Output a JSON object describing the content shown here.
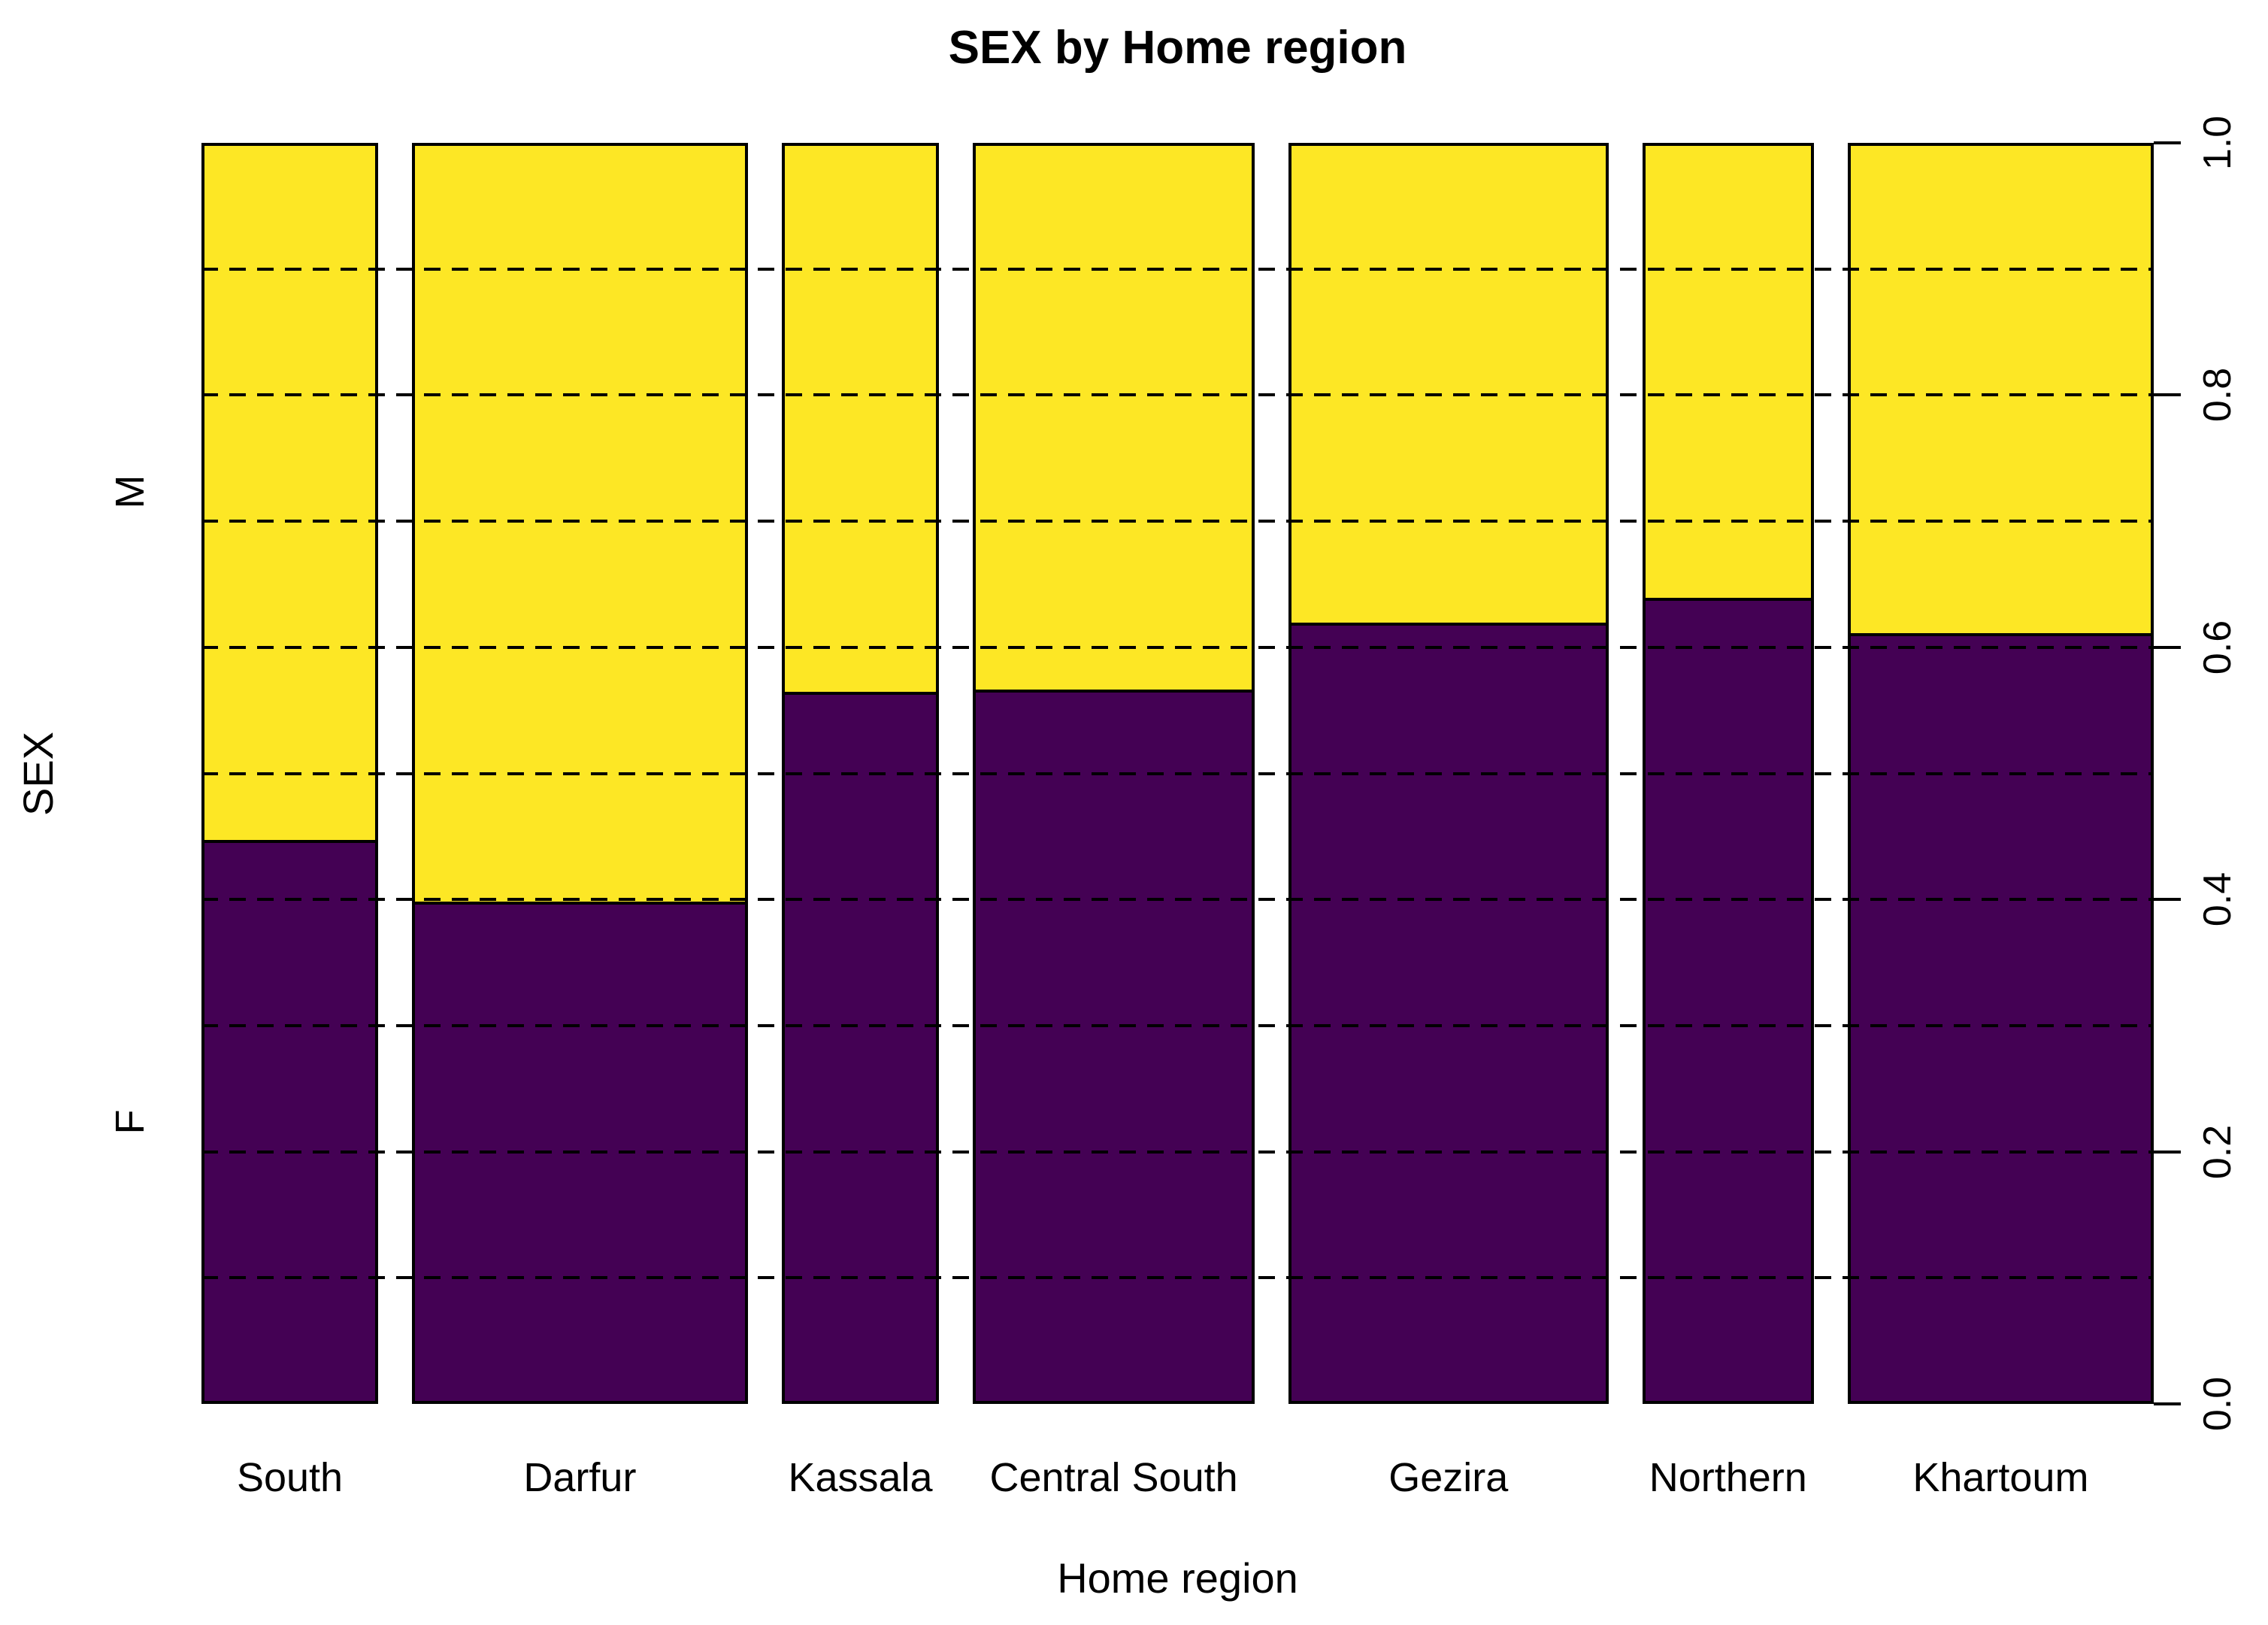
{
  "title": "SEX by Home region",
  "axes": {
    "x_label": "Home region",
    "y_label": "SEX",
    "y_segment_labels": [
      "M",
      "F"
    ],
    "y_tick_side": "right"
  },
  "colors": {
    "female_fill": "#440154",
    "male_fill": "#FDE725",
    "line": "#000000",
    "background": "#ffffff"
  },
  "chart_data": {
    "type": "bar",
    "variant": "spineplot (stacked proportion mosaic, bar widths proportional to group size)",
    "title": "SEX by Home region",
    "xlabel": "Home region",
    "ylabel": "SEX",
    "categories": [
      "South",
      "Darfur",
      "Kassala",
      "Central South",
      "Gezira",
      "Northern",
      "Khartoum"
    ],
    "category_width_fractions": [
      0.101,
      0.192,
      0.09,
      0.161,
      0.183,
      0.098,
      0.175
    ],
    "series": [
      {
        "name": "F",
        "color": "#440154",
        "values": [
          0.447,
          0.398,
          0.565,
          0.567,
          0.62,
          0.64,
          0.612
        ]
      },
      {
        "name": "M",
        "color": "#FDE725",
        "values": [
          0.553,
          0.602,
          0.435,
          0.433,
          0.38,
          0.36,
          0.388
        ]
      }
    ],
    "stacking": "F on bottom, M on top",
    "ylim": [
      0.0,
      1.0
    ],
    "y_ticks": [
      {
        "label": "0.0",
        "value": 0.0
      },
      {
        "label": "0.2",
        "value": 0.2
      },
      {
        "label": "0.4",
        "value": 0.4
      },
      {
        "label": "0.6",
        "value": 0.6
      },
      {
        "label": "0.8",
        "value": 0.8
      },
      {
        "label": "1.0",
        "value": 1.0
      }
    ],
    "grid": {
      "interval": 0.1,
      "style": "dashed",
      "on_top_of_bars": true
    },
    "legend": "none"
  }
}
